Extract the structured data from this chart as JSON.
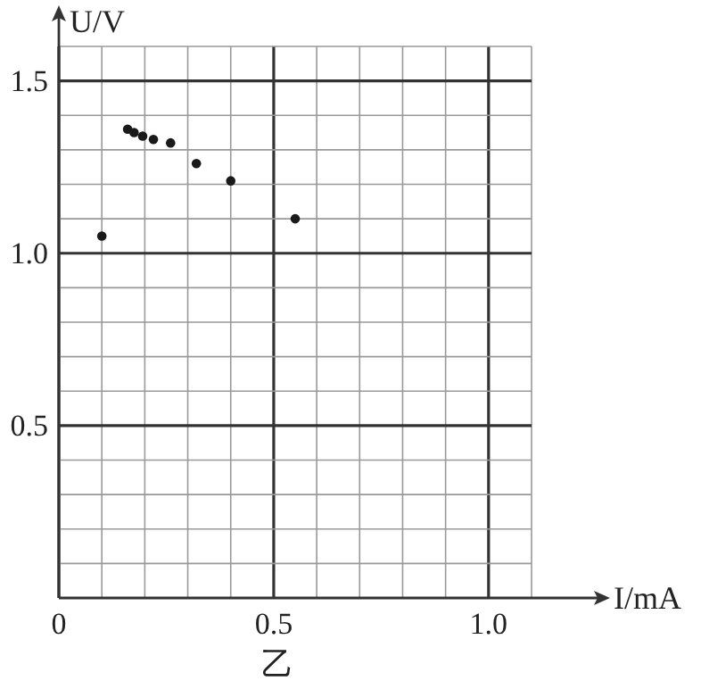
{
  "chart_data": {
    "type": "scatter",
    "xlabel": "I/mA",
    "ylabel": "U/V",
    "annotations": [
      "乙"
    ],
    "x": [
      0.1,
      0.16,
      0.175,
      0.195,
      0.22,
      0.26,
      0.32,
      0.4,
      0.55
    ],
    "values": [
      1.05,
      1.36,
      1.35,
      1.34,
      1.33,
      1.32,
      1.26,
      1.21,
      1.1
    ],
    "color": "#1a1a1a",
    "marker": "circle",
    "grid": true,
    "xlim": [
      0,
      1.1
    ],
    "ylim": [
      0,
      1.6
    ],
    "xticks": [
      0,
      {
        "value": 0.1,
        "label": null
      },
      {
        "value": 0.2,
        "label": null
      },
      {
        "value": 0.3,
        "label": null
      },
      {
        "value": 0.4,
        "label": null
      },
      0.5,
      {
        "value": 0.6,
        "label": null
      },
      {
        "value": 0.7,
        "label": null
      },
      {
        "value": 0.8,
        "label": null
      },
      {
        "value": 0.9,
        "label": null
      },
      {
        "value": 1,
        "label": "1.0"
      },
      {
        "value": 1.1,
        "label": null
      }
    ],
    "yticks": [
      {
        "value": 0.1,
        "label": null
      },
      {
        "value": 0.2,
        "label": null
      },
      {
        "value": 0.3,
        "label": null
      },
      {
        "value": 0.4,
        "label": null
      },
      0.5,
      {
        "value": 0.6,
        "label": null
      },
      {
        "value": 0.7,
        "label": null
      },
      {
        "value": 0.8,
        "label": null
      },
      {
        "value": 0.9,
        "label": null
      },
      {
        "value": 1,
        "label": "1.0"
      },
      {
        "value": 1.1,
        "label": null
      },
      {
        "value": 1.2,
        "label": null
      },
      {
        "value": 1.3,
        "label": null
      },
      {
        "value": 1.4,
        "label": null
      },
      1.5,
      {
        "value": 1.6,
        "label": null
      }
    ]
  }
}
